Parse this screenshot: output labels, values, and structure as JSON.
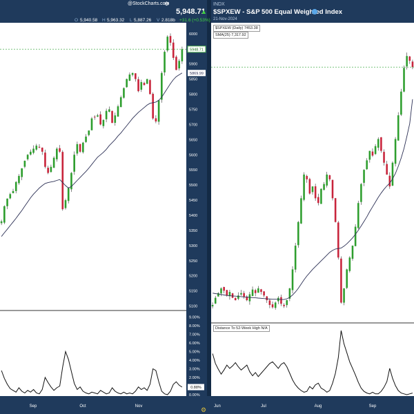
{
  "left_header": {
    "brand": "@StockCharts.com",
    "price": "5,948.71",
    "open_label": "O",
    "open": "5,940.58",
    "high_label": "H",
    "high": "5,963.32",
    "low_label": "L",
    "low": "5,887.26",
    "volume_label": "V",
    "volume": "2.818b",
    "change": "+31.6 (+0.53%)"
  },
  "right_header": {
    "exchange": "INDX",
    "title": "$SPXEW - S&P 500 Equal Weighted Index",
    "date": "21-Nov-2024",
    "legend_price": "$SPXEW (Daily) 7453.38",
    "legend_sma": "SMA(25) 7,317.92",
    "indicator_label": "Distance To 52-Week High",
    "indicator_value": "N/A"
  },
  "colors": {
    "frame": "#1f3a5c",
    "up": "#2e9e2e",
    "down": "#c8243b",
    "sma": "#2b2f54",
    "indicator": "#111111",
    "guide": "#4caf50"
  },
  "chart_data": [
    {
      "type": "candlestick",
      "name": "left-price-panel",
      "x_ticks": [
        "Sep",
        "Oct",
        "Nov"
      ],
      "y_ticks": [
        5100,
        5150,
        5200,
        5250,
        5300,
        5350,
        5400,
        5450,
        5500,
        5550,
        5600,
        5650,
        5700,
        5750,
        5800,
        5850,
        5900,
        5950,
        6000
      ],
      "ylim": [
        5090,
        6020
      ],
      "last_price_label": "5948.71",
      "sma_label": "5869.99",
      "series": [
        {
          "name": "price",
          "closes": [
            5380,
            5430,
            5455,
            5470,
            5480,
            5510,
            5530,
            5555,
            5580,
            5600,
            5610,
            5620,
            5630,
            5625,
            5610,
            5560,
            5540,
            5560,
            5590,
            5620,
            5610,
            5420,
            5450,
            5490,
            5540,
            5600,
            5635,
            5610,
            5640,
            5660,
            5680,
            5720,
            5725,
            5730,
            5700,
            5715,
            5745,
            5750,
            5705,
            5730,
            5760,
            5790,
            5820,
            5850,
            5865,
            5870,
            5850,
            5810,
            5840,
            5830,
            5850,
            5800,
            5720,
            5710,
            5780,
            5870,
            5940,
            5990,
            5970,
            5920,
            5880,
            5910,
            5948.71
          ]
        },
        {
          "name": "SMA(25)",
          "values": [
            5330,
            5342,
            5354,
            5366,
            5378,
            5390,
            5403,
            5416,
            5430,
            5444,
            5458,
            5470,
            5480,
            5490,
            5498,
            5505,
            5508,
            5510,
            5512,
            5515,
            5518,
            5508,
            5498,
            5490,
            5495,
            5505,
            5515,
            5525,
            5535,
            5545,
            5556,
            5568,
            5580,
            5592,
            5600,
            5608,
            5618,
            5630,
            5640,
            5650,
            5662,
            5672,
            5684,
            5696,
            5708,
            5720,
            5730,
            5740,
            5748,
            5756,
            5764,
            5770,
            5772,
            5774,
            5780,
            5790,
            5805,
            5820,
            5835,
            5848,
            5858,
            5864,
            5869.99
          ]
        }
      ]
    },
    {
      "type": "line",
      "name": "left-indicator-panel",
      "x_ticks": [
        "Sep",
        "Oct",
        "Nov"
      ],
      "y_ticks": [
        0,
        1,
        2,
        3,
        4,
        5,
        6,
        7,
        8,
        9
      ],
      "ylim": [
        0,
        9.2
      ],
      "last_value_label": "0.88%",
      "series": [
        {
          "name": "distance",
          "values": [
            2.8,
            1.9,
            1.2,
            0.7,
            0.5,
            0.3,
            0.8,
            0.4,
            0.2,
            0.5,
            0.3,
            0.6,
            0.2,
            0.1,
            0.6,
            2.0,
            1.4,
            0.9,
            0.5,
            0.8,
            1.0,
            3.2,
            5.0,
            4.1,
            2.7,
            1.3,
            0.6,
            0.9,
            0.4,
            0.2,
            0.1,
            0.3,
            0.2,
            0.1,
            0.5,
            0.3,
            0.1,
            0.2,
            0.8,
            0.4,
            0.2,
            0.1,
            0.3,
            0.1,
            0.2,
            0.1,
            0.4,
            0.9,
            0.6,
            0.8,
            0.5,
            1.2,
            3.0,
            2.8,
            1.5,
            0.4,
            0.1,
            0.0,
            0.4,
            1.2,
            1.5,
            1.1,
            0.88
          ]
        }
      ]
    },
    {
      "type": "candlestick",
      "name": "right-price-panel",
      "x_ticks": [
        "Jun",
        "Jul",
        "Aug",
        "Sep"
      ],
      "series": [
        {
          "name": "price",
          "closes": [
            6450,
            6480,
            6500,
            6520,
            6510,
            6490,
            6505,
            6480,
            6470,
            6490,
            6500,
            6485,
            6470,
            6495,
            6515,
            6500,
            6520,
            6505,
            6490,
            6470,
            6450,
            6440,
            6460,
            6480,
            6455,
            6445,
            6470,
            6520,
            6600,
            6700,
            6800,
            6900,
            7000,
            6980,
            6920,
            6950,
            6900,
            6880,
            6940,
            6960,
            7000,
            6980,
            6900,
            6800,
            6650,
            6460,
            6520,
            6600,
            6650,
            6700,
            6780,
            6880,
            6960,
            7020,
            7060,
            7100,
            7080,
            7120,
            7150,
            7100,
            7050,
            7000,
            6950,
            7050,
            7150,
            7250,
            7350,
            7450,
            7500,
            7480,
            7453.38
          ]
        },
        {
          "name": "SMA(25)",
          "values": [
            6500,
            6498,
            6496,
            6494,
            6492,
            6490,
            6489,
            6488,
            6487,
            6486,
            6485,
            6484,
            6483,
            6482,
            6481,
            6480,
            6479,
            6478,
            6477,
            6476,
            6475,
            6474,
            6474,
            6474,
            6473,
            6473,
            6476,
            6482,
            6492,
            6505,
            6520,
            6538,
            6556,
            6572,
            6586,
            6600,
            6612,
            6624,
            6636,
            6648,
            6660,
            6672,
            6680,
            6686,
            6688,
            6690,
            6698,
            6708,
            6720,
            6733,
            6748,
            6765,
            6783,
            6802,
            6822,
            6844,
            6864,
            6884,
            6904,
            6922,
            6938,
            6952,
            6964,
            6982,
            7005,
            7035,
            7070,
            7110,
            7160,
            7215,
            7317.92
          ]
        }
      ]
    },
    {
      "type": "line",
      "name": "right-indicator-panel",
      "x_ticks": [
        "Jun",
        "Jul",
        "Aug",
        "Sep"
      ],
      "series": [
        {
          "name": "distance",
          "values": [
            5.0,
            3.8,
            3.1,
            2.5,
            3.0,
            3.6,
            3.2,
            3.5,
            3.9,
            3.4,
            3.0,
            3.3,
            3.6,
            2.8,
            2.3,
            2.7,
            2.2,
            2.6,
            3.0,
            3.4,
            3.8,
            4.0,
            3.6,
            3.2,
            3.7,
            3.9,
            3.4,
            2.6,
            1.8,
            1.2,
            0.8,
            0.5,
            0.3,
            0.4,
            1.0,
            0.7,
            1.2,
            1.4,
            0.8,
            0.6,
            0.3,
            0.5,
            1.4,
            2.6,
            4.5,
            7.8,
            6.2,
            5.1,
            4.0,
            3.2,
            2.4,
            1.5,
            0.8,
            0.4,
            0.2,
            0.1,
            0.3,
            0.1,
            0.1,
            0.4,
            0.9,
            1.6,
            3.2,
            2.0,
            1.1,
            0.5,
            0.2,
            0.1,
            0.0,
            0.1,
            0.2
          ]
        }
      ]
    }
  ]
}
